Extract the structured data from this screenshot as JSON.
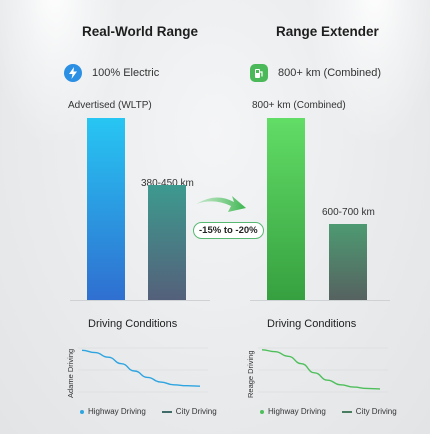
{
  "chart_data": [
    {
      "type": "bar",
      "title": "Real-World Range",
      "subtitle": "100% Electric",
      "categories": [
        "Advertised (WLTP)",
        "380-450 km"
      ],
      "values": [
        100,
        63
      ],
      "colors": [
        "#2aa8e8",
        "#3d8a86"
      ],
      "change_label": "-15% to -20%"
    },
    {
      "type": "bar",
      "title": "Range Extender",
      "subtitle": "800+ km (Combined)",
      "categories": [
        "800+ km (Combined)",
        "600-700 km"
      ],
      "values": [
        100,
        42
      ],
      "colors": [
        "#55c95e",
        "#4a8a67"
      ]
    },
    {
      "type": "line",
      "title": "Driving Conditions",
      "ylabel": "Adame Driving",
      "series": [
        {
          "name": "Highway Driving",
          "values": [
            95,
            90,
            80,
            66,
            50,
            36,
            26,
            20,
            18,
            17
          ]
        }
      ],
      "legend": [
        "Highway Driving",
        "City Driving"
      ],
      "color": "#2ea4e0"
    },
    {
      "type": "line",
      "title": "Driving Conditions",
      "ylabel": "Reage Driving",
      "series": [
        {
          "name": "Highway Driving",
          "values": [
            96,
            92,
            82,
            66,
            46,
            30,
            20,
            15,
            12,
            11
          ]
        }
      ],
      "legend": [
        "Highway Driving",
        "City Driving"
      ],
      "color": "#4fbf5c"
    }
  ],
  "legend_colors": {
    "left_highway": "#2ea4e0",
    "left_city": "#3f6b68",
    "right_highway": "#4fbf5c",
    "right_city": "#4a7c5f"
  }
}
